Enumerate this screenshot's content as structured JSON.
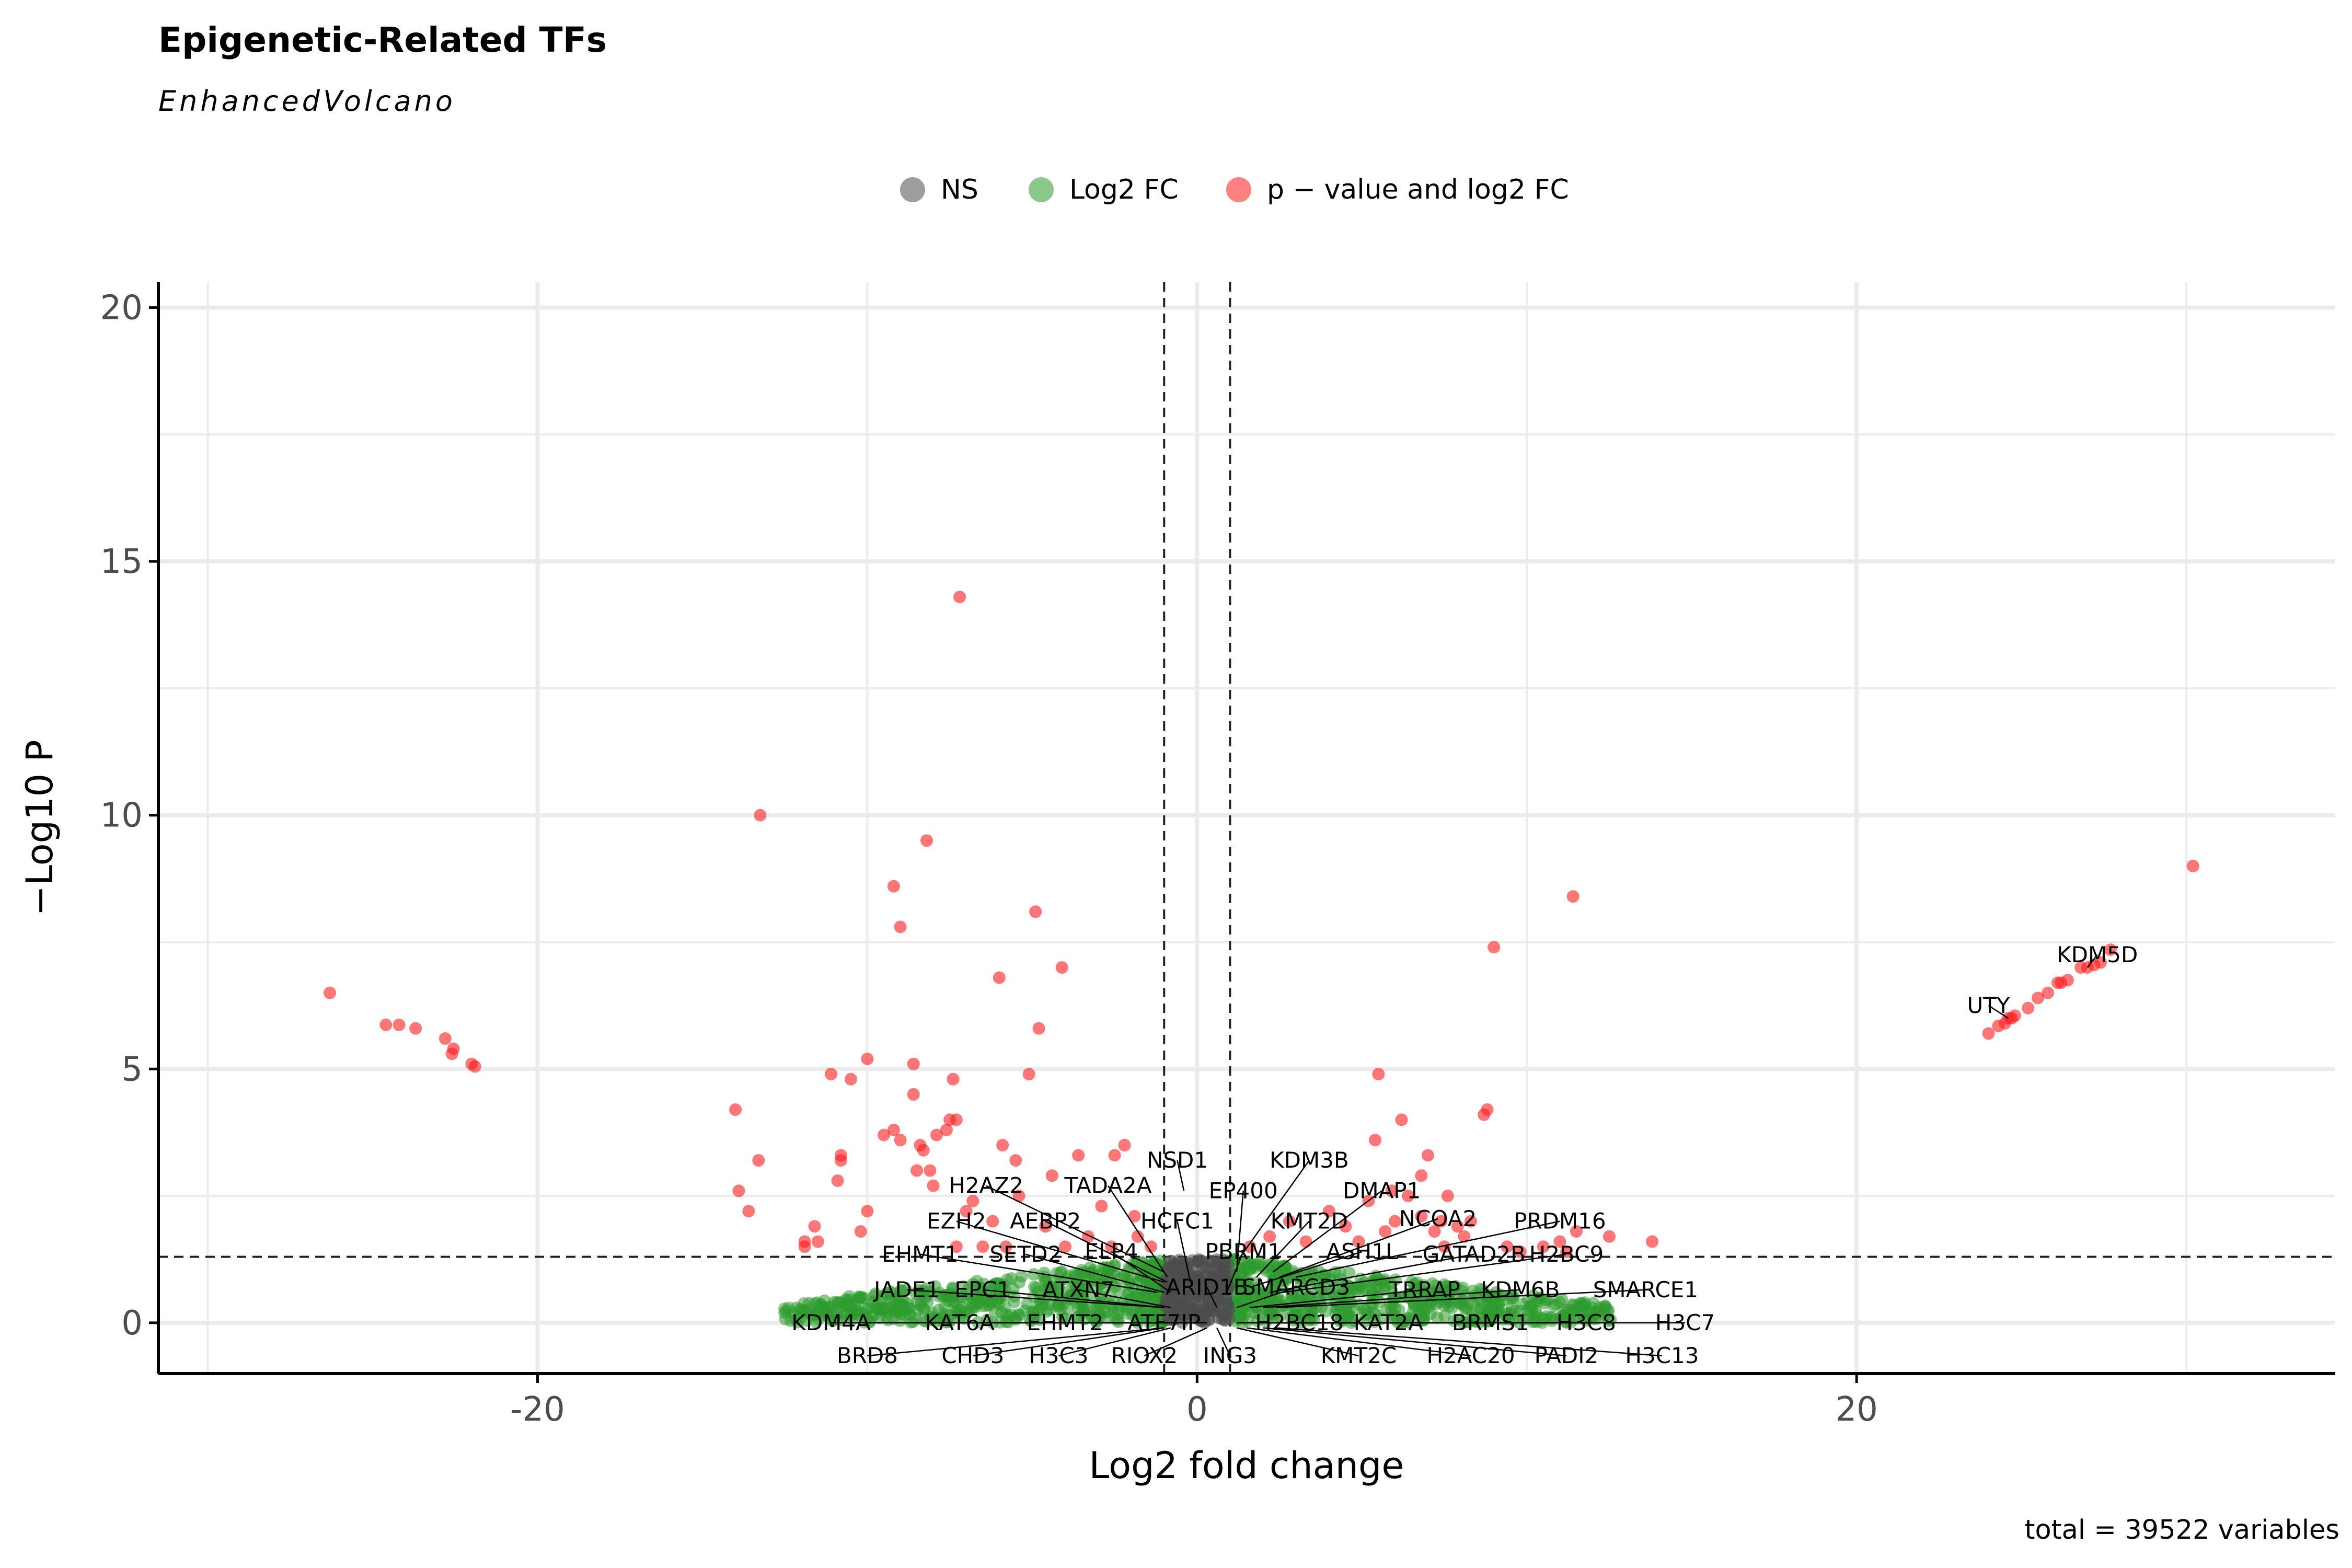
{
  "title": "Epigenetic-Related TFs",
  "subtitle": "EnhancedVolcano",
  "caption": "total = 39522 variables",
  "colors": {
    "ns": "#4d4d4d",
    "log2fc": "#2e9a2e",
    "p_and_log2fc": "#ff1a1a",
    "grid": "#ebebeb",
    "axis": "#000000"
  },
  "legend": {
    "items": [
      {
        "key": "ns",
        "label": "NS"
      },
      {
        "key": "log2fc",
        "label": "Log2 FC"
      },
      {
        "key": "p_and_log2fc",
        "label": "p − value and log2 FC"
      }
    ]
  },
  "chart_data": {
    "type": "scatter",
    "title": "Epigenetic-Related TFs",
    "subtitle": "EnhancedVolcano",
    "xlabel": "Log2 fold change",
    "ylabel": "−Log10 P",
    "xlim": [
      -31.5,
      34.5
    ],
    "ylim": [
      -1.0,
      20.5
    ],
    "xticks": [
      -20,
      0,
      20
    ],
    "yticks": [
      0,
      5,
      10,
      15,
      20
    ],
    "grid": true,
    "legend_position": "top",
    "thresholds": {
      "log2fc": [
        -1,
        1
      ],
      "neg_log10_p": 1.3
    },
    "significant_points": [
      [
        -26.3,
        6.5
      ],
      [
        -24.6,
        5.87
      ],
      [
        -24.2,
        5.87
      ],
      [
        -23.7,
        5.8
      ],
      [
        -22.8,
        5.6
      ],
      [
        -22.6,
        5.3
      ],
      [
        -22.55,
        5.4
      ],
      [
        -22.0,
        5.1
      ],
      [
        -21.9,
        5.05
      ],
      [
        -14.0,
        4.2
      ],
      [
        -13.9,
        2.6
      ],
      [
        -13.6,
        2.2
      ],
      [
        -13.3,
        3.2
      ],
      [
        -13.25,
        10.0
      ],
      [
        -11.9,
        1.5
      ],
      [
        -11.9,
        1.6
      ],
      [
        -11.6,
        1.9
      ],
      [
        -11.5,
        1.6
      ],
      [
        -11.1,
        4.9
      ],
      [
        -10.9,
        2.8
      ],
      [
        -10.8,
        3.2
      ],
      [
        -10.8,
        3.3
      ],
      [
        -10.5,
        4.8
      ],
      [
        -10.2,
        1.8
      ],
      [
        -10.0,
        2.2
      ],
      [
        -10.0,
        5.2
      ],
      [
        -9.5,
        3.7
      ],
      [
        -9.2,
        3.8
      ],
      [
        -9.2,
        8.6
      ],
      [
        -9.0,
        7.8
      ],
      [
        -9.0,
        3.6
      ],
      [
        -8.6,
        4.5
      ],
      [
        -8.6,
        5.1
      ],
      [
        -8.5,
        3.0
      ],
      [
        -8.4,
        3.5
      ],
      [
        -8.3,
        3.4
      ],
      [
        -8.2,
        9.5
      ],
      [
        -8.1,
        3.0
      ],
      [
        -8.0,
        2.7
      ],
      [
        -7.9,
        3.7
      ],
      [
        -7.6,
        3.8
      ],
      [
        -7.5,
        4.0
      ],
      [
        -7.3,
        4.0
      ],
      [
        -7.4,
        4.8
      ],
      [
        -7.3,
        1.5
      ],
      [
        -7.2,
        14.3
      ],
      [
        -7.0,
        2.2
      ],
      [
        -6.8,
        2.4
      ],
      [
        -6.5,
        1.5
      ],
      [
        -6.2,
        2.0
      ],
      [
        -6.0,
        6.8
      ],
      [
        -5.9,
        3.5
      ],
      [
        -5.8,
        1.5
      ],
      [
        -5.5,
        3.2
      ],
      [
        -5.4,
        2.5
      ],
      [
        -5.1,
        4.9
      ],
      [
        -4.9,
        8.1
      ],
      [
        -4.8,
        5.8
      ],
      [
        -4.6,
        1.9
      ],
      [
        -4.4,
        2.9
      ],
      [
        -4.1,
        7.0
      ],
      [
        -4.0,
        1.5
      ],
      [
        -3.6,
        3.3
      ],
      [
        -3.3,
        1.7
      ],
      [
        -2.9,
        2.3
      ],
      [
        -2.6,
        1.5
      ],
      [
        -2.5,
        3.3
      ],
      [
        -2.2,
        3.5
      ],
      [
        -1.9,
        2.1
      ],
      [
        -1.8,
        1.7
      ],
      [
        -1.4,
        1.5
      ],
      [
        1.6,
        1.5
      ],
      [
        2.2,
        1.7
      ],
      [
        2.8,
        2.0
      ],
      [
        3.3,
        1.6
      ],
      [
        4.0,
        2.2
      ],
      [
        4.5,
        1.9
      ],
      [
        4.9,
        1.6
      ],
      [
        5.2,
        2.4
      ],
      [
        5.4,
        3.6
      ],
      [
        5.5,
        4.9
      ],
      [
        5.7,
        1.8
      ],
      [
        5.9,
        2.6
      ],
      [
        6.0,
        2.0
      ],
      [
        6.2,
        4.0
      ],
      [
        6.4,
        2.5
      ],
      [
        6.8,
        2.1
      ],
      [
        6.8,
        2.9
      ],
      [
        7.0,
        3.3
      ],
      [
        7.2,
        1.8
      ],
      [
        7.4,
        2.0
      ],
      [
        7.5,
        1.5
      ],
      [
        7.6,
        2.5
      ],
      [
        7.9,
        1.9
      ],
      [
        8.1,
        1.7
      ],
      [
        8.3,
        2.0
      ],
      [
        8.7,
        4.1
      ],
      [
        8.8,
        4.2
      ],
      [
        9.0,
        7.4
      ],
      [
        9.4,
        1.5
      ],
      [
        9.8,
        1.4
      ],
      [
        10.5,
        1.5
      ],
      [
        11.0,
        1.6
      ],
      [
        11.2,
        1.4
      ],
      [
        11.4,
        8.4
      ],
      [
        11.5,
        1.8
      ],
      [
        12.5,
        1.7
      ],
      [
        13.8,
        1.6
      ],
      [
        24.0,
        5.7
      ],
      [
        24.3,
        5.85
      ],
      [
        24.5,
        5.9
      ],
      [
        24.6,
        6.0
      ],
      [
        24.7,
        6.0
      ],
      [
        24.8,
        6.05
      ],
      [
        25.2,
        6.2
      ],
      [
        25.5,
        6.4
      ],
      [
        25.8,
        6.5
      ],
      [
        26.1,
        6.7
      ],
      [
        26.2,
        6.7
      ],
      [
        26.4,
        6.75
      ],
      [
        26.8,
        7.0
      ],
      [
        27.0,
        7.0
      ],
      [
        27.2,
        7.05
      ],
      [
        27.4,
        7.1
      ],
      [
        27.7,
        7.35
      ],
      [
        30.2,
        9.0
      ]
    ],
    "labels": [
      {
        "text": "NSD1",
        "x": -0.4,
        "y": 2.6,
        "tx": -0.6,
        "ty": 3.2
      },
      {
        "text": "KDM3B",
        "x": 1.2,
        "y": 1.2,
        "tx": 3.4,
        "ty": 3.2
      },
      {
        "text": "H2AZ2",
        "x": -1.0,
        "y": 1.0,
        "tx": -6.4,
        "ty": 2.7
      },
      {
        "text": "TADA2A",
        "x": -0.9,
        "y": 0.9,
        "tx": -2.7,
        "ty": 2.7
      },
      {
        "text": "EP400",
        "x": 1.2,
        "y": 1.0,
        "tx": 1.4,
        "ty": 2.6
      },
      {
        "text": "DMAP1",
        "x": 2.3,
        "y": 1.0,
        "tx": 5.6,
        "ty": 2.6
      },
      {
        "text": "EZH2",
        "x": -1.0,
        "y": 0.8,
        "tx": -7.3,
        "ty": 2.0
      },
      {
        "text": "AEBP2",
        "x": -0.9,
        "y": 0.8,
        "tx": -4.6,
        "ty": 2.0
      },
      {
        "text": "HCFC1",
        "x": -0.2,
        "y": 0.8,
        "tx": -0.6,
        "ty": 2.0
      },
      {
        "text": "KMT2D",
        "x": 1.8,
        "y": 0.9,
        "tx": 3.4,
        "ty": 2.0
      },
      {
        "text": "NCOA2",
        "x": 2.5,
        "y": 0.9,
        "tx": 7.3,
        "ty": 2.05
      },
      {
        "text": "PRDM16",
        "x": 3.0,
        "y": 0.9,
        "tx": 11.0,
        "ty": 2.0
      },
      {
        "text": "EHMT1",
        "x": -1.2,
        "y": 0.6,
        "tx": -8.4,
        "ty": 1.35
      },
      {
        "text": "SETD2",
        "x": -1.0,
        "y": 0.6,
        "tx": -5.2,
        "ty": 1.35
      },
      {
        "text": "ELP4",
        "x": -0.8,
        "y": 0.6,
        "tx": -2.6,
        "ty": 1.4
      },
      {
        "text": "PBRM1",
        "x": 0.9,
        "y": 0.6,
        "tx": 1.4,
        "ty": 1.4
      },
      {
        "text": "ASH1L",
        "x": 1.6,
        "y": 0.7,
        "tx": 5.0,
        "ty": 1.4
      },
      {
        "text": "GATAD2B",
        "x": 2.2,
        "y": 0.6,
        "tx": 8.4,
        "ty": 1.35
      },
      {
        "text": "H2BC9",
        "x": 2.6,
        "y": 0.6,
        "tx": 11.2,
        "ty": 1.35
      },
      {
        "text": "JADE1",
        "x": -1.0,
        "y": 0.3,
        "tx": -8.8,
        "ty": 0.65
      },
      {
        "text": "EPC1",
        "x": -1.0,
        "y": 0.3,
        "tx": -6.5,
        "ty": 0.65
      },
      {
        "text": "ATXN7",
        "x": -0.8,
        "y": 0.3,
        "tx": -3.6,
        "ty": 0.65
      },
      {
        "text": "ARID1B",
        "x": 0.6,
        "y": 0.3,
        "tx": 0.3,
        "ty": 0.7
      },
      {
        "text": "SMARCD3",
        "x": 1.2,
        "y": 0.3,
        "tx": 3.0,
        "ty": 0.7
      },
      {
        "text": "TRRAP",
        "x": 1.6,
        "y": 0.3,
        "tx": 6.9,
        "ty": 0.65
      },
      {
        "text": "KDM6B",
        "x": 2.0,
        "y": 0.3,
        "tx": 9.8,
        "ty": 0.65
      },
      {
        "text": "SMARCE1",
        "x": 2.4,
        "y": 0.3,
        "tx": 13.6,
        "ty": 0.65
      },
      {
        "text": "KDM4A",
        "x": -1.0,
        "y": 0.0,
        "tx": -11.1,
        "ty": 0.0
      },
      {
        "text": "KAT6A",
        "x": -1.0,
        "y": 0.0,
        "tx": -7.2,
        "ty": 0.0
      },
      {
        "text": "EHMT2",
        "x": -0.8,
        "y": 0.0,
        "tx": -4.0,
        "ty": 0.0
      },
      {
        "text": "ATF7IP",
        "x": 0.3,
        "y": 0.0,
        "tx": -1.0,
        "ty": 0.0
      },
      {
        "text": "H2BC18",
        "x": 1.2,
        "y": 0.0,
        "tx": 3.1,
        "ty": 0.0
      },
      {
        "text": "KAT2A",
        "x": 1.4,
        "y": 0.0,
        "tx": 5.8,
        "ty": 0.0
      },
      {
        "text": "BRMS1",
        "x": 1.8,
        "y": 0.0,
        "tx": 8.9,
        "ty": 0.0
      },
      {
        "text": "H3C8",
        "x": 2.2,
        "y": 0.0,
        "tx": 11.8,
        "ty": 0.0
      },
      {
        "text": "H3C7",
        "x": 2.6,
        "y": 0.0,
        "tx": 14.8,
        "ty": 0.0
      },
      {
        "text": "BRD8",
        "x": -1.0,
        "y": -0.1,
        "tx": -10.0,
        "ty": -0.65
      },
      {
        "text": "CHD3",
        "x": -1.0,
        "y": -0.1,
        "tx": -6.8,
        "ty": -0.65
      },
      {
        "text": "H3C3",
        "x": -0.8,
        "y": -0.1,
        "tx": -4.2,
        "ty": -0.65
      },
      {
        "text": "RIOX2",
        "x": 0.3,
        "y": -0.1,
        "tx": -1.6,
        "ty": -0.65
      },
      {
        "text": "ING3",
        "x": 0.6,
        "y": -0.1,
        "tx": 1.0,
        "ty": -0.65
      },
      {
        "text": "KMT2C",
        "x": 1.2,
        "y": -0.1,
        "tx": 4.9,
        "ty": -0.65
      },
      {
        "text": "H2AC20",
        "x": 1.5,
        "y": -0.1,
        "tx": 8.3,
        "ty": -0.65
      },
      {
        "text": "PADI2",
        "x": 2.0,
        "y": -0.1,
        "tx": 11.2,
        "ty": -0.65
      },
      {
        "text": "H3C13",
        "x": 2.4,
        "y": -0.1,
        "tx": 14.1,
        "ty": -0.65
      },
      {
        "text": "UTY",
        "x": 24.6,
        "y": 6.0,
        "tx": 24.0,
        "ty": 6.25
      },
      {
        "text": "KDM5D",
        "x": 27.0,
        "y": 7.0,
        "tx": 27.3,
        "ty": 7.25
      }
    ]
  }
}
